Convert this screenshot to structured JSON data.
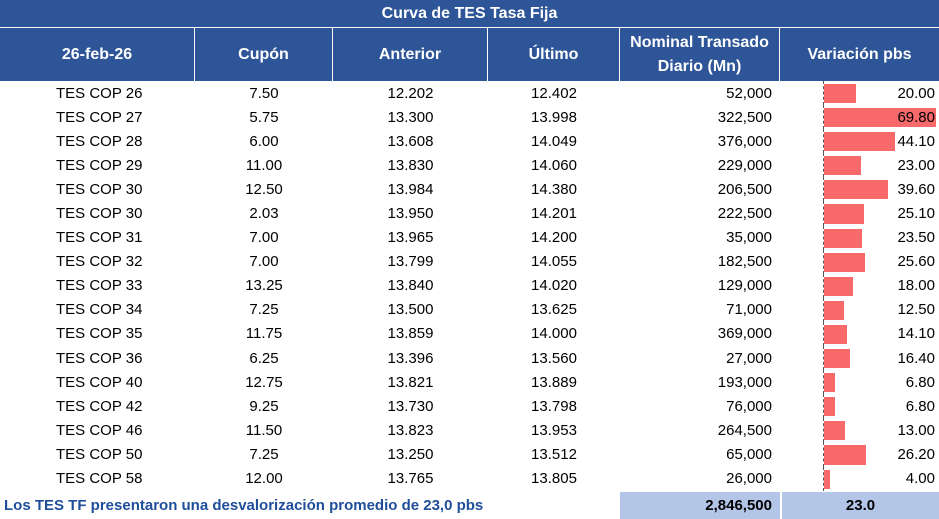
{
  "title": "Curva de TES Tasa Fija",
  "headers": {
    "date": "26-feb-26",
    "coupon": "Cupón",
    "previous": "Anterior",
    "last": "Último",
    "nominal_line1": "Nominal Transado",
    "nominal_line2": "Diario (Mn)",
    "variation": "Variación pbs"
  },
  "rows": [
    {
      "name": "TES COP 26",
      "coupon": "7.50",
      "prev": "12.202",
      "last": "12.402",
      "nominal": "52,000",
      "var": "20.00",
      "var_num": 20.0
    },
    {
      "name": "TES COP 27",
      "coupon": "5.75",
      "prev": "13.300",
      "last": "13.998",
      "nominal": "322,500",
      "var": "69.80",
      "var_num": 69.8
    },
    {
      "name": "TES COP 28",
      "coupon": "6.00",
      "prev": "13.608",
      "last": "14.049",
      "nominal": "376,000",
      "var": "44.10",
      "var_num": 44.1
    },
    {
      "name": "TES COP 29",
      "coupon": "11.00",
      "prev": "13.830",
      "last": "14.060",
      "nominal": "229,000",
      "var": "23.00",
      "var_num": 23.0
    },
    {
      "name": "TES COP 30",
      "coupon": "12.50",
      "prev": "13.984",
      "last": "14.380",
      "nominal": "206,500",
      "var": "39.60",
      "var_num": 39.6
    },
    {
      "name": "TES COP 30",
      "coupon": "2.03",
      "prev": "13.950",
      "last": "14.201",
      "nominal": "222,500",
      "var": "25.10",
      "var_num": 25.1
    },
    {
      "name": "TES COP 31",
      "coupon": "7.00",
      "prev": "13.965",
      "last": "14.200",
      "nominal": "35,000",
      "var": "23.50",
      "var_num": 23.5
    },
    {
      "name": "TES COP 32",
      "coupon": "7.00",
      "prev": "13.799",
      "last": "14.055",
      "nominal": "182,500",
      "var": "25.60",
      "var_num": 25.6
    },
    {
      "name": "TES COP 33",
      "coupon": "13.25",
      "prev": "13.840",
      "last": "14.020",
      "nominal": "129,000",
      "var": "18.00",
      "var_num": 18.0
    },
    {
      "name": "TES COP 34",
      "coupon": "7.25",
      "prev": "13.500",
      "last": "13.625",
      "nominal": "71,000",
      "var": "12.50",
      "var_num": 12.5
    },
    {
      "name": "TES COP 35",
      "coupon": "11.75",
      "prev": "13.859",
      "last": "14.000",
      "nominal": "369,000",
      "var": "14.10",
      "var_num": 14.1
    },
    {
      "name": "TES COP 36",
      "coupon": "6.25",
      "prev": "13.396",
      "last": "13.560",
      "nominal": "27,000",
      "var": "16.40",
      "var_num": 16.4
    },
    {
      "name": "TES COP 40",
      "coupon": "12.75",
      "prev": "13.821",
      "last": "13.889",
      "nominal": "193,000",
      "var": "6.80",
      "var_num": 6.8
    },
    {
      "name": "TES COP 42",
      "coupon": "9.25",
      "prev": "13.730",
      "last": "13.798",
      "nominal": "76,000",
      "var": "6.80",
      "var_num": 6.8
    },
    {
      "name": "TES COP 46",
      "coupon": "11.50",
      "prev": "13.823",
      "last": "13.953",
      "nominal": "264,500",
      "var": "13.00",
      "var_num": 13.0
    },
    {
      "name": "TES COP 50",
      "coupon": "7.25",
      "prev": "13.250",
      "last": "13.512",
      "nominal": "65,000",
      "var": "26.20",
      "var_num": 26.2
    },
    {
      "name": "TES COP 58",
      "coupon": "12.00",
      "prev": "13.765",
      "last": "13.805",
      "nominal": "26,000",
      "var": "4.00",
      "var_num": 4.0
    }
  ],
  "footer": {
    "note": "Los TES TF presentaron una desvalorización promedio de 23,0 pbs",
    "total_nominal": "2,846,500",
    "avg_variation": "23.0"
  },
  "colors": {
    "header_bg": "#2e5597",
    "bar": "#f8696b",
    "total_bg": "#b4c6e7",
    "note_text": "#1f4e9a"
  }
}
